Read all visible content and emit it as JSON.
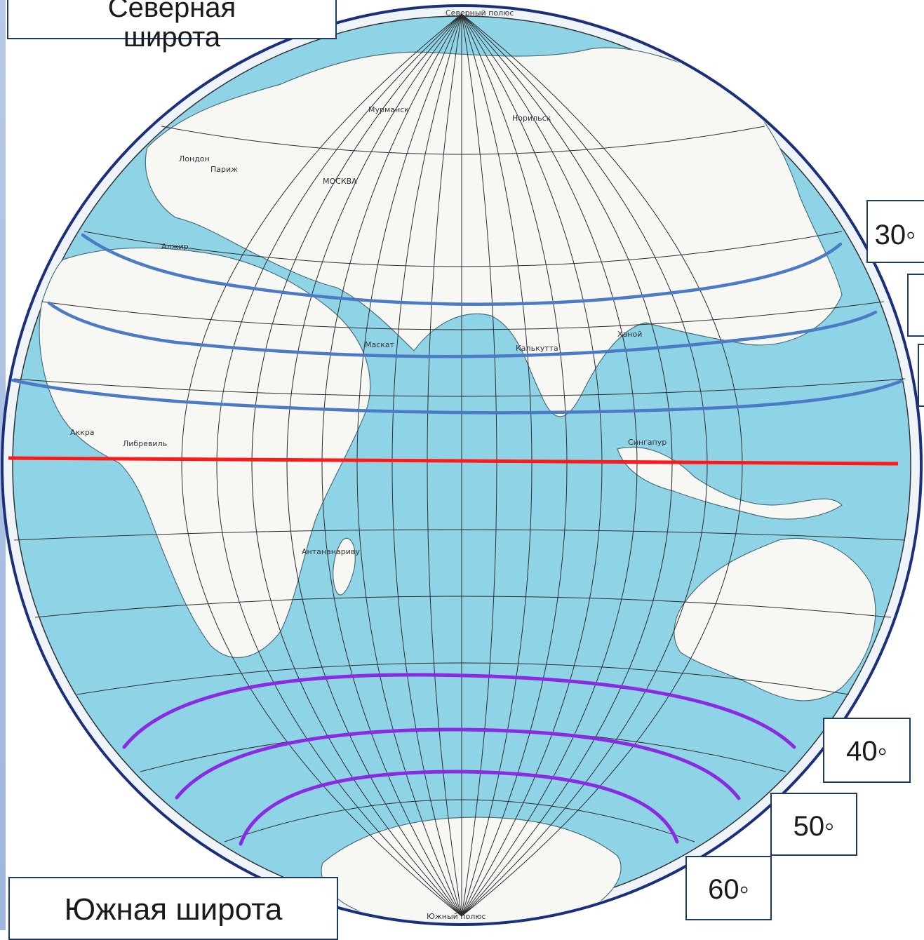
{
  "colors": {
    "ocean": "#8fd3e6",
    "land": "#f7f7f4",
    "graticule": "#2c2c2c",
    "equator": "#ff1a1a",
    "north_parallels": "#4a7bc4",
    "south_parallels": "#8a2be2",
    "rim": "#1c2f7a"
  },
  "labels": {
    "north_hemisphere": "Северная\nширота",
    "south_hemisphere": "Южная широта",
    "north_30": "30◦",
    "south_40": "40◦",
    "south_50": "50◦",
    "south_60": "60◦"
  },
  "map_labels": {
    "north_pole": "Северный полюс",
    "south_pole": "Южный полюс",
    "cities": [
      "Лондон",
      "Париж",
      "МОСКВА",
      "Мурманск",
      "Норильск",
      "Алжир",
      "Маскат",
      "Калькутта",
      "Ханой",
      "Аккра",
      "Либревиль",
      "Сингапур",
      "Антананариву"
    ]
  }
}
